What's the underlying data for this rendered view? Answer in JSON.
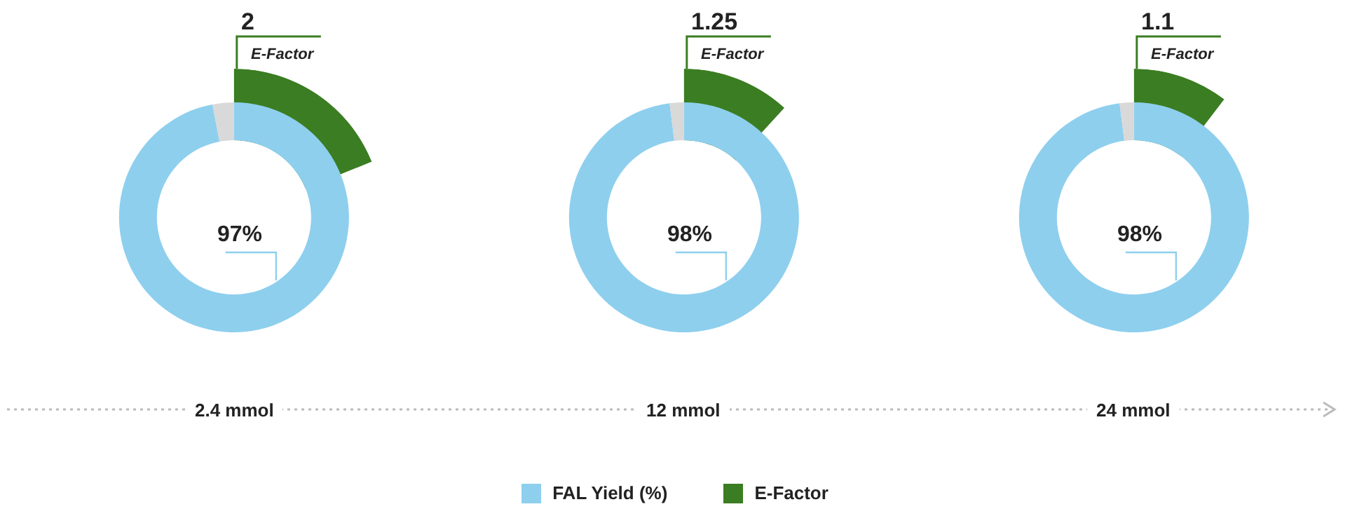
{
  "chart_data": [
    {
      "type": "donut",
      "xlabel": "2.4 mmol",
      "categories": [
        "FAL Yield (%)",
        null
      ],
      "values": [
        97,
        3
      ],
      "colors": [
        "#8ecfee",
        "#d9d9d9"
      ],
      "value_labels": [
        "97%",
        null
      ],
      "legend": "bottom",
      "series": [
        {
          "name": "E-Factor",
          "type": "bar",
          "color": "#3b7d22",
          "colors": [
            "#3b7d22",
            null
          ],
          "values": [
            2,
            null
          ],
          "value_labels": [
            "2",
            null
          ]
        }
      ],
      "annotations": [
        "E-Factor"
      ]
    },
    {
      "type": "donut",
      "xlabel": "12 mmol",
      "categories": [
        null,
        null
      ],
      "values": [
        98,
        2
      ],
      "colors": [
        "#8ecfee",
        "#d9d9d9"
      ],
      "value_labels": [
        "98%",
        null
      ],
      "series": [
        {
          "type": "bar",
          "color": "#3b7d22",
          "colors": [
            "#3b7d22",
            null
          ],
          "values": [
            1.25,
            null
          ],
          "value_labels": [
            "1.25",
            null
          ]
        }
      ],
      "annotations": [
        "E-Factor"
      ]
    },
    {
      "type": "donut",
      "xlabel": "24 mmol",
      "categories": [
        null,
        null
      ],
      "values": [
        98,
        2
      ],
      "colors": [
        "#8ecfee",
        "#d9d9d9"
      ],
      "value_labels": [
        "98%",
        null
      ],
      "series": [
        {
          "type": "bar",
          "color": "#3b7d22",
          "colors": [
            "#3b7d22",
            null
          ],
          "values": [
            1.1,
            null
          ],
          "value_labels": [
            "1.1",
            null
          ]
        }
      ],
      "annotations": [
        "E-Factor"
      ]
    }
  ]
}
